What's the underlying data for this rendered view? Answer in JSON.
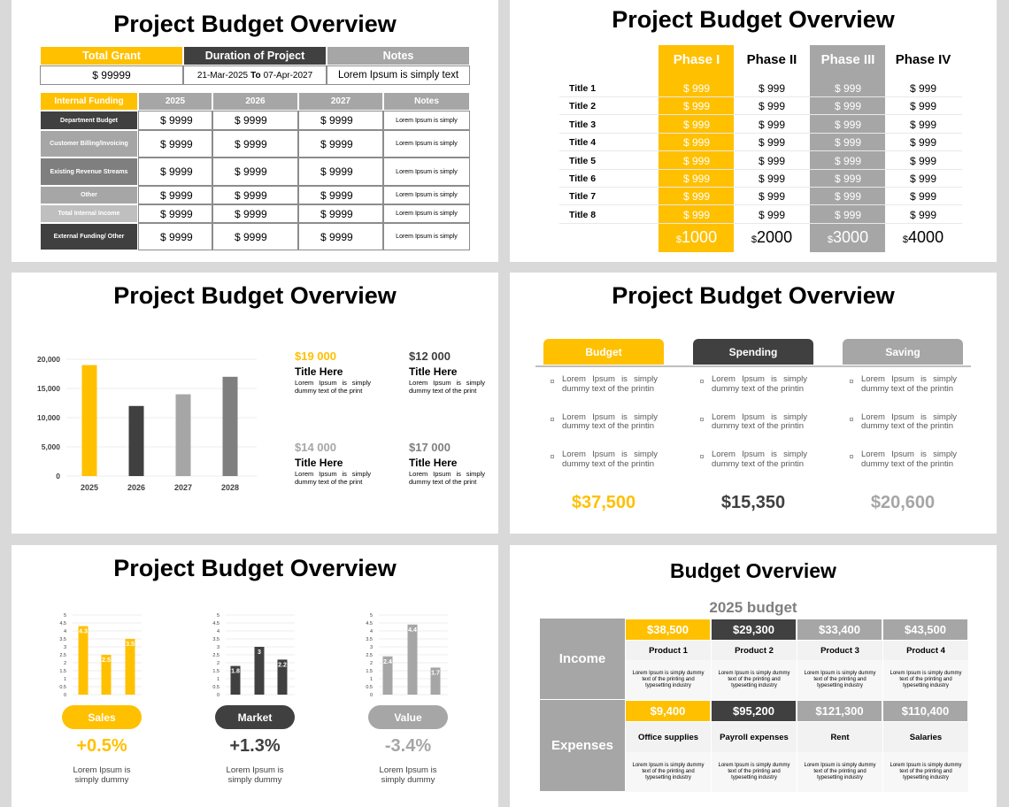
{
  "titles": [
    "Project Budget Overview",
    "Project Budget Overview",
    "Project Budget Overview",
    "Project Budget Overview",
    "Project Budget Overview",
    "Budget Overview"
  ],
  "funding_table": {
    "summary_headers": [
      "Total Grant",
      "Duration of Project",
      "Notes"
    ],
    "grant": "$ 99999",
    "start": "21-Mar-2025",
    "to": "To",
    "end": "07-Apr-2027",
    "notes": "Lorem Ipsum is simply text",
    "headers": [
      "Internal Funding",
      "2025",
      "2026",
      "2027",
      "Notes"
    ],
    "rows": [
      [
        "Department Budget",
        "$ 9999",
        "$ 9999",
        "$ 9999",
        "Lorem Ipsum is simply"
      ],
      [
        "Customer Billing/Invoicing",
        "$ 9999",
        "$ 9999",
        "$ 9999",
        "Lorem Ipsum is simply"
      ],
      [
        "Existing Revenue Streams",
        "$ 9999",
        "$ 9999",
        "$ 9999",
        "Lorem Ipsum is simply"
      ],
      [
        "Other",
        "$ 9999",
        "$ 9999",
        "$ 9999",
        "Lorem Ipsum is simply"
      ],
      [
        "Total Internal Income",
        "$ 9999",
        "$ 9999",
        "$ 9999",
        "Lorem Ipsum is simply"
      ],
      [
        "External Funding/ Other",
        "$ 9999",
        "$ 9999",
        "$ 9999",
        "Lorem Ipsum is simply"
      ]
    ]
  },
  "phase_table": {
    "headers": [
      "Phase I",
      "Phase II",
      "Phase III",
      "Phase IV"
    ],
    "rows": [
      {
        "label": "Title 1",
        "values": [
          "$ 999",
          "$ 999",
          "$ 999",
          "$ 999"
        ]
      },
      {
        "label": "Title 2",
        "values": [
          "$ 999",
          "$ 999",
          "$ 999",
          "$ 999"
        ]
      },
      {
        "label": "Title 3",
        "values": [
          "$ 999",
          "$ 999",
          "$ 999",
          "$ 999"
        ]
      },
      {
        "label": "Title 4",
        "values": [
          "$ 999",
          "$ 999",
          "$ 999",
          "$ 999"
        ]
      },
      {
        "label": "Title 5",
        "values": [
          "$ 999",
          "$ 999",
          "$ 999",
          "$ 999"
        ]
      },
      {
        "label": "Title 6",
        "values": [
          "$ 999",
          "$ 999",
          "$ 999",
          "$ 999"
        ]
      },
      {
        "label": "Title 7",
        "values": [
          "$ 999",
          "$ 999",
          "$ 999",
          "$ 999"
        ]
      },
      {
        "label": "Title 8",
        "values": [
          "$ 999",
          "$ 999",
          "$ 999",
          "$ 999"
        ]
      }
    ],
    "totals": [
      {
        "currency": "$",
        "amount": "1000"
      },
      {
        "currency": "$",
        "amount": "2000"
      },
      {
        "currency": "$",
        "amount": "3000"
      },
      {
        "currency": "$",
        "amount": "4000"
      }
    ]
  },
  "stats": [
    {
      "amount": "$19 000",
      "title": "Title Here",
      "text": "Lorem Ipsum is simply dummy text of the print",
      "color": "#ffc000"
    },
    {
      "amount": "$12 000",
      "title": "Title Here",
      "text": "Lorem Ipsum is simply dummy text of the print",
      "color": "#404040"
    },
    {
      "amount": "$14 000",
      "title": "Title Here",
      "text": "Lorem Ipsum is simply dummy text of the print",
      "color": "#a6a6a6"
    },
    {
      "amount": "$17 000",
      "title": "Title Here",
      "text": "Lorem Ipsum is simply dummy text of the print",
      "color": "#7f7f7f"
    }
  ],
  "budget_columns": [
    {
      "header": "Budget",
      "color": "#ffc000",
      "bullets": [
        "Lorem Ipsum is simply dummy text of the printin",
        "Lorem Ipsum is simply dummy text of the printin",
        "Lorem Ipsum is simply dummy text of the printin"
      ],
      "total": "$37,500"
    },
    {
      "header": "Spending",
      "color": "#404040",
      "bullets": [
        "Lorem Ipsum is simply dummy text of the printin",
        "Lorem Ipsum is simply dummy text of the printin",
        "Lorem Ipsum is simply dummy text of the printin"
      ],
      "total": "$15,350"
    },
    {
      "header": "Saving",
      "color": "#a6a6a6",
      "bullets": [
        "Lorem Ipsum is simply dummy text of the printin",
        "Lorem Ipsum is simply dummy text of the printin",
        "Lorem Ipsum is simply dummy text of the printin"
      ],
      "total": "$20,600"
    }
  ],
  "chart_data": [
    {
      "type": "bar",
      "categories": [
        "2025",
        "2026",
        "2027",
        "2028"
      ],
      "values": [
        19000,
        12000,
        14000,
        17000
      ],
      "colors": [
        "#ffc000",
        "#404040",
        "#a6a6a6",
        "#7f7f7f"
      ],
      "ylim": [
        0,
        20000
      ],
      "yticks": [
        0,
        {
          "value": 5000,
          "label": "5,000"
        },
        {
          "value": 10000,
          "label": "10,000"
        },
        {
          "value": 15000,
          "label": "15,000"
        },
        {
          "value": 20000,
          "label": "20,000"
        }
      ],
      "grid": true
    },
    {
      "type": "bar",
      "title": "Sales",
      "categories": [
        null,
        null,
        null
      ],
      "values": [
        4.3,
        2.5,
        3.5
      ],
      "color": "#ffc000",
      "ylim": [
        0,
        5
      ],
      "yticks": [
        0,
        0.5,
        1,
        1.5,
        2,
        2.5,
        3,
        3.5,
        4,
        4.5,
        5
      ],
      "grid": true,
      "annotations": [
        "+0.5%",
        "Lorem Ipsum is simply dummy"
      ]
    },
    {
      "type": "bar",
      "title": "Market",
      "categories": [
        null,
        null,
        null
      ],
      "values": [
        1.8,
        3,
        2.2
      ],
      "color": "#404040",
      "ylim": [
        0,
        5
      ],
      "yticks": [
        0,
        0.5,
        1,
        1.5,
        2,
        2.5,
        3,
        3.5,
        4,
        4.5,
        5
      ],
      "grid": true,
      "annotations": [
        "+1.3%",
        "Lorem Ipsum is simply dummy"
      ]
    },
    {
      "type": "bar",
      "title": "Value",
      "categories": [
        null,
        null,
        null
      ],
      "values": [
        2.4,
        4.4,
        1.7
      ],
      "color": "#a6a6a6",
      "ylim": [
        0,
        5
      ],
      "yticks": [
        0,
        0.5,
        1,
        1.5,
        2,
        2.5,
        3,
        3.5,
        4,
        4.5,
        5
      ],
      "grid": true,
      "annotations": [
        "-3.4%",
        "Lorem Ipsum is simply dummy"
      ]
    }
  ],
  "budget_grid": {
    "subtitle": "2025 budget",
    "colors": [
      "#ffc000",
      "#404040",
      "#a6a6a6",
      "#a6a6a6"
    ],
    "sections": [
      {
        "label": "Income",
        "items": [
          {
            "amount": "$38,500",
            "name": "Product 1",
            "desc": "Lorem Ipsum is simply dummy text of the printing and typesetting industry"
          },
          {
            "amount": "$29,300",
            "name": "Product 2",
            "desc": "Lorem Ipsum is simply dummy text of the printing and typesetting industry"
          },
          {
            "amount": "$33,400",
            "name": "Product 3",
            "desc": "Lorem Ipsum is simply dummy text of the printing and typesetting industry"
          },
          {
            "amount": "$43,500",
            "name": "Product 4",
            "desc": "Lorem Ipsum is simply dummy text of the printing and typesetting industry"
          }
        ]
      },
      {
        "label": "Expenses",
        "items": [
          {
            "amount": "$9,400",
            "name": "Office supplies",
            "desc": "Lorem Ipsum is simply dummy text of the printing and typesetting industry"
          },
          {
            "amount": "$95,200",
            "name": "Payroll expenses",
            "desc": "Lorem Ipsum is simply dummy text of the printing and typesetting industry"
          },
          {
            "amount": "$121,300",
            "name": "Rent",
            "desc": "Lorem Ipsum is simply dummy text of the printing and typesetting industry"
          },
          {
            "amount": "$110,400",
            "name": "Salaries",
            "desc": "Lorem Ipsum is simply dummy text of the printing and typesetting industry"
          }
        ]
      }
    ]
  }
}
